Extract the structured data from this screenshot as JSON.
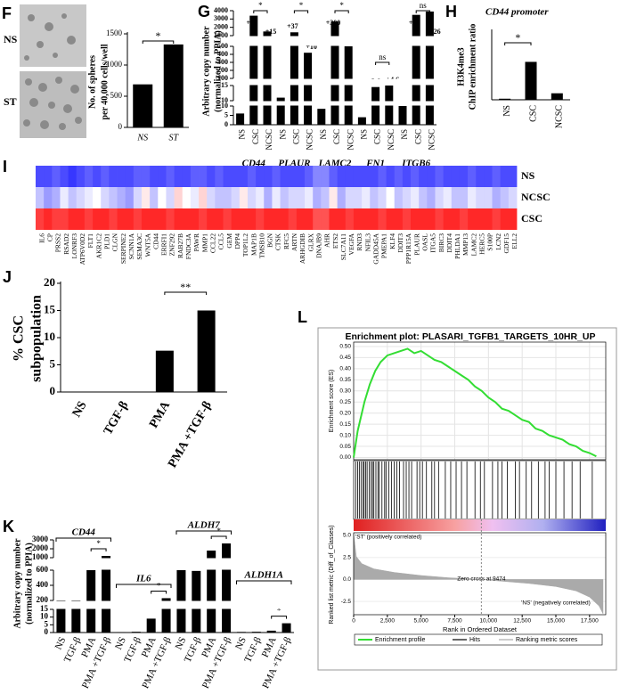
{
  "chart_data": [
    {
      "type": "bar",
      "panel": "F",
      "image_labels": [
        "NS",
        "ST"
      ],
      "ylabel": [
        "No. of spheres",
        "per 40,000 cells/well"
      ],
      "categories": [
        "NS",
        "ST"
      ],
      "values": [
        690,
        1330
      ],
      "color": "#000000",
      "ylim": [
        0,
        1500
      ],
      "yticks": [
        0,
        500,
        1000,
        1500
      ],
      "significance": "*"
    },
    {
      "type": "broken-bar",
      "panel": "G",
      "ylabel": [
        "Arbitrary copy number",
        "(normalized to PPIA)"
      ],
      "categories": [
        "NS",
        "CSC",
        "NCSC"
      ],
      "groups": [
        {
          "name": "CD44",
          "values": [
            6,
            3400,
            1500
          ],
          "fold_labels": [
            "+52",
            "+15"
          ],
          "significance": "*"
        },
        {
          "name": "PLAUR",
          "values": [
            11,
            1400,
            420
          ],
          "fold_labels": [
            "+37",
            "+10"
          ],
          "significance": "*"
        },
        {
          "name": "LAMC2",
          "values": [
            8.5,
            2700,
            900
          ],
          "fold_labels": [
            "+300",
            "+86"
          ],
          "significance": "*"
        },
        {
          "name": "FN1",
          "values": [
            4,
            14.5,
            18
          ],
          "fold_labels": [
            "+3.6",
            "+4.6"
          ],
          "significance": "ns"
        },
        {
          "name": "ITGB6",
          "values": [
            10,
            3500,
            3900
          ],
          "fold_labels": [
            "+89",
            "+126"
          ],
          "significance": "ns"
        }
      ],
      "color": "#000000",
      "ylim_segments": [
        [
          0,
          10
        ],
        [
          10,
          15
        ],
        [
          100,
          500
        ],
        [
          1000,
          4000
        ]
      ],
      "yticks": [
        [
          0,
          5,
          10
        ],
        [
          10,
          15
        ],
        [
          100,
          200,
          300,
          400,
          500
        ],
        [
          1000,
          2000,
          3000,
          4000
        ]
      ]
    },
    {
      "type": "bar",
      "panel": "H",
      "title": "CD44 promoter",
      "ylabel": [
        "H3K4me3",
        "ChIP enrichment ratio"
      ],
      "categories": [
        "NS",
        "CSC",
        "NCSC"
      ],
      "values": [
        3,
        105,
        18
      ],
      "color": "#000000",
      "ylim": [
        0,
        190
      ],
      "significance": "*"
    },
    {
      "type": "heatmap",
      "panel": "I",
      "rows": [
        "NS",
        "NCSC",
        "CSC"
      ],
      "columns": [
        "IL6",
        "CP",
        "PRSS2",
        "RSAD2",
        "LONRF3",
        "ATP6V0D2",
        "FLT1",
        "AKR1C2",
        "PLD1",
        "CLGN",
        "SERPINE2",
        "SCNN1A",
        "SEMA3C",
        "WNT5A",
        "CD44",
        "ERRFI1",
        "ZNF292",
        "RAB27B",
        "FNDC3A",
        "PAWR",
        "MMP1",
        "CCL22",
        "CCL5",
        "GEM",
        "DPP4",
        "TOP1L2",
        "MAP1B",
        "TMSB10",
        "BGN",
        "CTSK",
        "RFC5",
        "ARTN",
        "ARHGDIB",
        "GLRX",
        "DNAJB9",
        "AHR",
        "ETS2",
        "SLC7A11",
        "VEGFA",
        "RND3",
        "NFIL3",
        "GADD45A",
        "PMEPA1",
        "KLF4",
        "DDIT3",
        "PPP1R15A",
        "PLAUR",
        "OASL",
        "ITGA5",
        "BIRC3",
        "DDIT4",
        "PHLDA1",
        "MMP13",
        "LAMC2",
        "HERC5",
        "S100P",
        "LCN2",
        "GDF15",
        "ELL2"
      ],
      "values": [
        [
          -0.9,
          -0.9,
          -0.8,
          -0.9,
          -1,
          -0.9,
          -0.8,
          -0.9,
          -0.8,
          -0.9,
          -0.9,
          -0.9,
          -0.8,
          -0.8,
          -0.9,
          -0.9,
          -0.8,
          -0.9,
          -0.9,
          -0.8,
          -0.8,
          -0.9,
          -0.8,
          -0.9,
          -0.9,
          -0.9,
          -0.8,
          -0.9,
          -0.9,
          -0.8,
          -0.9,
          -0.9,
          -0.9,
          -0.8,
          -0.6,
          -0.6,
          -0.8,
          -0.9,
          -0.9,
          -0.9,
          -0.9,
          -0.9,
          -0.8,
          -0.9,
          -0.8,
          -0.9,
          -0.8,
          -0.9,
          -0.9,
          -0.8,
          -0.9,
          -0.9,
          -0.9,
          -0.8,
          -0.9,
          -0.9,
          -0.8,
          -0.9,
          -0.9
        ],
        [
          -0.3,
          -0.5,
          -0.4,
          -0.1,
          -0.3,
          -0.2,
          -0.1,
          0,
          -0.2,
          -0.3,
          -0.4,
          -0.5,
          -0.2,
          0.1,
          -0.3,
          0,
          -0.2,
          0.2,
          0,
          -0.1,
          0.2,
          -0.2,
          -0.3,
          -0.3,
          -0.2,
          0.1,
          -0.2,
          -0.1,
          -0.4,
          -0.1,
          -0.3,
          -0.2,
          -0.2,
          -0.1,
          -0.4,
          -0.3,
          0.1,
          -0.4,
          -0.2,
          -0.2,
          -0.1,
          -0.3,
          -0.2,
          0,
          -0.3,
          -0.2,
          -0.1,
          -0.3,
          -0.4,
          -0.2,
          -0.1,
          -0.3,
          -0.3,
          -0.1,
          -0.2,
          -0.2,
          -0.4,
          -0.3,
          -0.2
        ],
        [
          0.9,
          1,
          0.9,
          0.9,
          1,
          1,
          0.9,
          1,
          1,
          0.9,
          1,
          1,
          0.9,
          1,
          1,
          1,
          0.9,
          1,
          1,
          1,
          0.9,
          1,
          1,
          0.9,
          1,
          1,
          1,
          0.9,
          1,
          1,
          1,
          0.9,
          1,
          1,
          0.8,
          0.8,
          1,
          1,
          0.9,
          1,
          1,
          1,
          0.9,
          1,
          1,
          0.9,
          1,
          1,
          1,
          0.9,
          1,
          1,
          0.9,
          1,
          1,
          1,
          0.9,
          1,
          1
        ]
      ]
    },
    {
      "type": "bar",
      "panel": "J",
      "ylabel": [
        "% CSC",
        "subpopulation"
      ],
      "categories": [
        "NS",
        "TGF-β",
        "PMA",
        "PMA +TGF-β"
      ],
      "values": [
        0,
        0,
        7.6,
        15
      ],
      "color": "#000000",
      "ylim": [
        0,
        20
      ],
      "yticks": [
        0,
        5,
        10,
        15,
        20
      ],
      "significance": "**"
    },
    {
      "type": "broken-bar",
      "panel": "K",
      "ylabel": [
        "Arbitrary copy number",
        "(normalized to PPIA)"
      ],
      "categories": [
        "NS",
        "TGF-β",
        "PMA",
        "PMA +TGF-β"
      ],
      "groups": [
        {
          "name": "CD44",
          "values": [
            200,
            200,
            800,
            1200
          ],
          "significance": "*"
        },
        {
          "name": "IL6",
          "values": [
            0.3,
            0.5,
            9,
            230
          ],
          "significance": "*"
        },
        {
          "name": "ALDH7",
          "values": [
            600,
            590,
            1800,
            2600
          ],
          "significance": "*"
        },
        {
          "name": "ALDH1A",
          "values": [
            0.4,
            0.5,
            1.2,
            6
          ],
          "significance": "*"
        }
      ],
      "color": "#000000",
      "ylim_segments": [
        [
          0,
          15
        ],
        [
          200,
          600
        ],
        [
          1000,
          3000
        ]
      ],
      "yticks": [
        [
          0,
          5,
          10,
          15
        ],
        [
          200,
          400,
          600
        ],
        [
          1000,
          2000,
          3000
        ]
      ]
    },
    {
      "type": "gsea",
      "panel": "L",
      "title": "Enrichment plot: PLASARI_TGFB1_TARGETS_10HR_UP",
      "xlabel": "Rank in Ordered Dataset",
      "xlim": [
        0,
        18700
      ],
      "xticks": [
        0,
        {
          "value": 2500,
          "label": "2,500"
        },
        {
          "value": 5000,
          "label": "5,000"
        },
        {
          "value": 7500,
          "label": "7,500"
        },
        {
          "value": 10000,
          "label": "10,000"
        },
        {
          "value": 12500,
          "label": "12,500"
        },
        {
          "value": 15000,
          "label": "15,000"
        },
        {
          "value": 17500,
          "label": "17,500"
        }
      ],
      "grid": true,
      "es": {
        "ylabel": "Enrichment score (ES)",
        "color": "#33dd33",
        "x": [
          0,
          300,
          800,
          1200,
          1600,
          2000,
          2500,
          3000,
          3500,
          4000,
          4500,
          5000,
          5500,
          6000,
          6500,
          7000,
          7500,
          8000,
          8500,
          9000,
          9500,
          10000,
          10500,
          11000,
          11500,
          12000,
          12500,
          13000,
          13500,
          14000,
          14500,
          15000,
          15500,
          16000,
          16500,
          17000,
          17500,
          18000
        ],
        "values": [
          0,
          0.12,
          0.25,
          0.33,
          0.39,
          0.43,
          0.46,
          0.47,
          0.48,
          0.49,
          0.47,
          0.48,
          0.46,
          0.44,
          0.43,
          0.41,
          0.39,
          0.37,
          0.35,
          0.32,
          0.3,
          0.27,
          0.25,
          0.22,
          0.21,
          0.19,
          0.17,
          0.16,
          0.13,
          0.12,
          0.1,
          0.09,
          0.08,
          0.06,
          0.05,
          0.03,
          0.02,
          0.005
        ],
        "ylim": [
          -0.01,
          0.52
        ],
        "yticks": [
          {
            "value": 0,
            "label": "0.00"
          },
          0.05,
          {
            "value": 0.1,
            "label": "0.10"
          },
          0.15,
          {
            "value": 0.2,
            "label": "0.20"
          },
          0.25,
          {
            "value": 0.3,
            "label": "0.30"
          },
          0.35,
          {
            "value": 0.4,
            "label": "0.40"
          },
          0.45,
          {
            "value": 0.5,
            "label": "0.50"
          }
        ]
      },
      "hits": [
        150,
        300,
        420,
        550,
        700,
        780,
        900,
        1000,
        1150,
        1300,
        1400,
        1500,
        1650,
        1800,
        1900,
        2100,
        2300,
        2400,
        2600,
        2800,
        3000,
        3200,
        3400,
        3700,
        3900,
        4100,
        4300,
        4700,
        4900,
        5100,
        5400,
        5800,
        6000,
        6300,
        6800,
        7200,
        7600,
        8000,
        8400,
        9000,
        9400,
        9700,
        10300,
        10700,
        11000,
        11400,
        12000,
        12300,
        12800,
        13200,
        13700,
        14200,
        14500,
        15000,
        15600,
        16200,
        16800,
        17700
      ],
      "metric": {
        "ylabel": "Ranked list metric (Diff_of_Classes)",
        "color": "#aaaaaa",
        "x": [
          0,
          200,
          600,
          1500,
          3000,
          5000,
          7000,
          9474,
          11000,
          13000,
          15000,
          16500,
          17500,
          18200,
          18500
        ],
        "values": [
          5.2,
          2.6,
          1.8,
          1.2,
          0.8,
          0.45,
          0.2,
          0,
          -0.2,
          -0.45,
          -0.8,
          -1.3,
          -2,
          -3,
          -3.9
        ],
        "ylim": [
          -4,
          5.3
        ],
        "yticks": [
          {
            "value": 5,
            "label": "5.0"
          },
          2.5,
          {
            "value": 0,
            "label": "0.0"
          },
          -2.5
        ]
      },
      "positive_label": "'ST' (positively correlated)",
      "negative_label": "'NS' (negatively correlated)",
      "zero_cross": 9474,
      "zero_cross_label": "Zero cross at 9474",
      "legend": [
        "Enrichment profile",
        "Hits",
        "Ranking metric scores"
      ]
    }
  ]
}
